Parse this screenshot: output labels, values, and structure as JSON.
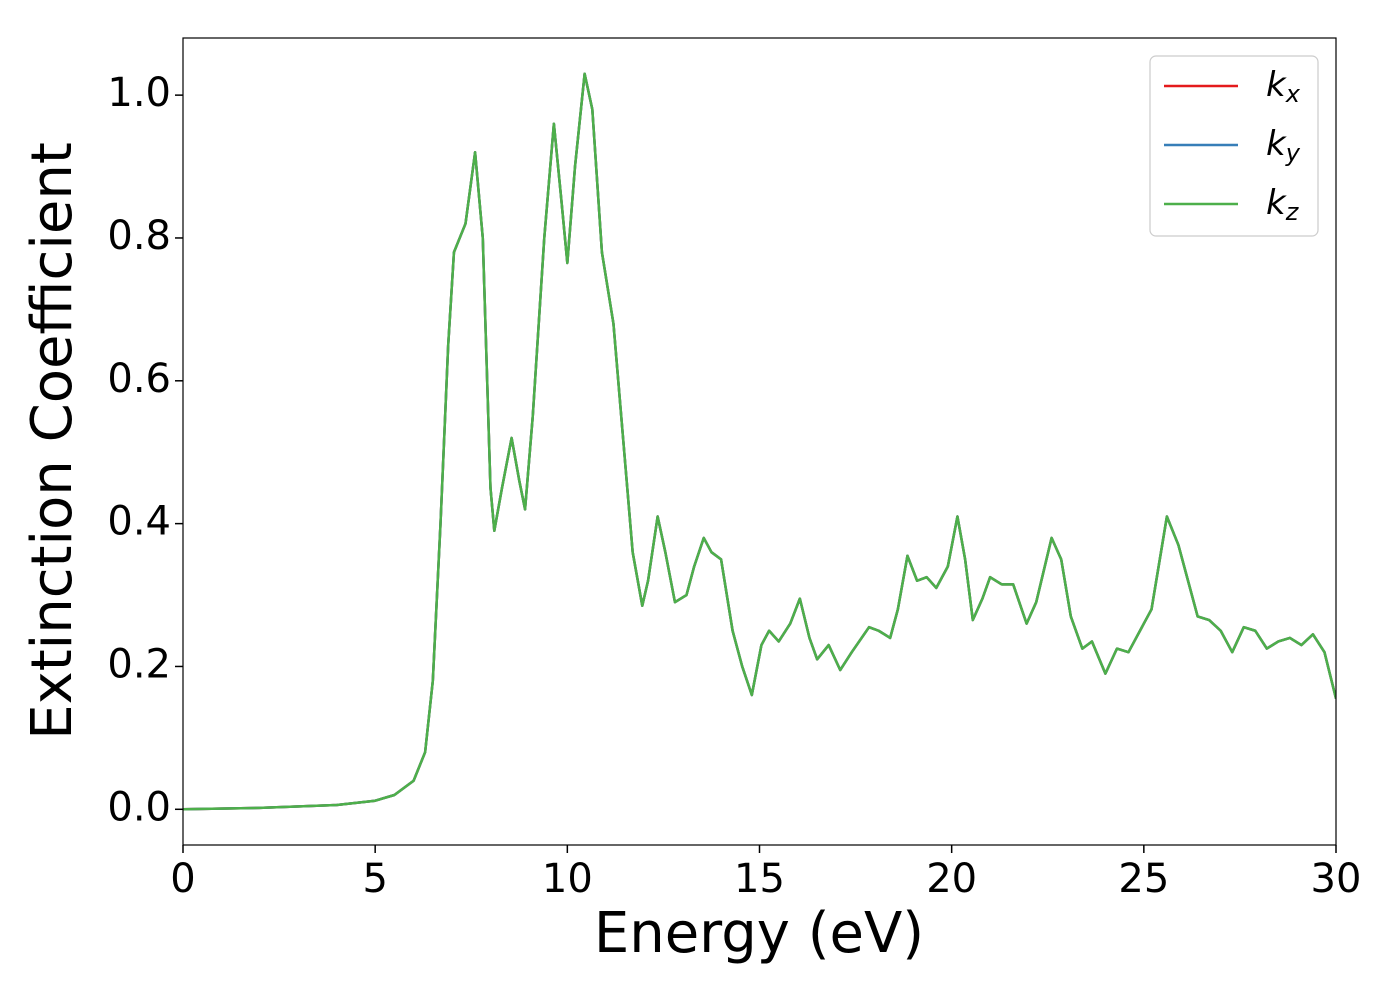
{
  "chart_data": {
    "type": "line",
    "xlabel": "Energy (eV)",
    "ylabel": "Extinction Coefficient",
    "x": [
      0,
      2,
      4,
      5,
      5.5,
      6,
      6.3,
      6.5,
      6.7,
      6.9,
      7.05,
      7.2,
      7.35,
      7.6,
      7.8,
      8.0,
      8.1,
      8.3,
      8.55,
      8.75,
      8.9,
      9.1,
      9.4,
      9.65,
      9.85,
      10.0,
      10.2,
      10.45,
      10.65,
      10.9,
      11.2,
      11.45,
      11.7,
      11.95,
      12.1,
      12.35,
      12.55,
      12.8,
      13.1,
      13.3,
      13.55,
      13.75,
      14.0,
      14.3,
      14.55,
      14.8,
      15.05,
      15.25,
      15.5,
      15.8,
      16.05,
      16.3,
      16.5,
      16.8,
      17.1,
      17.4,
      17.85,
      18.1,
      18.4,
      18.6,
      18.85,
      19.1,
      19.35,
      19.6,
      19.9,
      20.15,
      20.35,
      20.55,
      20.8,
      21.0,
      21.3,
      21.6,
      21.95,
      22.2,
      22.6,
      22.85,
      23.1,
      23.4,
      23.65,
      24.0,
      24.3,
      24.6,
      24.9,
      25.2,
      25.6,
      25.9,
      26.1,
      26.4,
      26.7,
      27.0,
      27.3,
      27.6,
      27.9,
      28.2,
      28.5,
      28.8,
      29.1,
      29.4,
      29.7,
      30.0
    ],
    "series": [
      {
        "name": "kx",
        "color": "#e41a1c",
        "values": [
          0,
          0.002,
          0.006,
          0.012,
          0.02,
          0.04,
          0.08,
          0.18,
          0.4,
          0.65,
          0.78,
          0.8,
          0.82,
          0.92,
          0.8,
          0.45,
          0.39,
          0.45,
          0.52,
          0.46,
          0.42,
          0.55,
          0.8,
          0.96,
          0.85,
          0.765,
          0.9,
          1.03,
          0.98,
          0.78,
          0.68,
          0.52,
          0.36,
          0.285,
          0.32,
          0.41,
          0.36,
          0.29,
          0.3,
          0.34,
          0.38,
          0.36,
          0.35,
          0.25,
          0.2,
          0.16,
          0.23,
          0.25,
          0.235,
          0.26,
          0.295,
          0.24,
          0.21,
          0.23,
          0.195,
          0.22,
          0.255,
          0.25,
          0.24,
          0.28,
          0.355,
          0.32,
          0.325,
          0.31,
          0.34,
          0.41,
          0.35,
          0.265,
          0.295,
          0.325,
          0.315,
          0.315,
          0.26,
          0.29,
          0.38,
          0.35,
          0.27,
          0.225,
          0.235,
          0.19,
          0.225,
          0.22,
          0.25,
          0.28,
          0.41,
          0.37,
          0.33,
          0.27,
          0.265,
          0.25,
          0.22,
          0.255,
          0.25,
          0.225,
          0.235,
          0.24,
          0.23,
          0.245,
          0.22,
          0.155
        ]
      },
      {
        "name": "ky",
        "color": "#377eb8",
        "values": [
          0,
          0.002,
          0.006,
          0.012,
          0.02,
          0.04,
          0.08,
          0.18,
          0.4,
          0.65,
          0.78,
          0.8,
          0.82,
          0.92,
          0.8,
          0.45,
          0.39,
          0.45,
          0.52,
          0.46,
          0.42,
          0.55,
          0.8,
          0.96,
          0.85,
          0.765,
          0.9,
          1.03,
          0.98,
          0.78,
          0.68,
          0.52,
          0.36,
          0.285,
          0.32,
          0.41,
          0.36,
          0.29,
          0.3,
          0.34,
          0.38,
          0.36,
          0.35,
          0.25,
          0.2,
          0.16,
          0.23,
          0.25,
          0.235,
          0.26,
          0.295,
          0.24,
          0.21,
          0.23,
          0.195,
          0.22,
          0.255,
          0.25,
          0.24,
          0.28,
          0.355,
          0.32,
          0.325,
          0.31,
          0.34,
          0.41,
          0.35,
          0.265,
          0.295,
          0.325,
          0.315,
          0.315,
          0.26,
          0.29,
          0.38,
          0.35,
          0.27,
          0.225,
          0.235,
          0.19,
          0.225,
          0.22,
          0.25,
          0.28,
          0.41,
          0.37,
          0.33,
          0.27,
          0.265,
          0.25,
          0.22,
          0.255,
          0.25,
          0.225,
          0.235,
          0.24,
          0.23,
          0.245,
          0.22,
          0.155
        ]
      },
      {
        "name": "kz",
        "color": "#4daf4a",
        "values": [
          0,
          0.002,
          0.006,
          0.012,
          0.02,
          0.04,
          0.08,
          0.18,
          0.4,
          0.65,
          0.78,
          0.8,
          0.82,
          0.92,
          0.8,
          0.45,
          0.39,
          0.45,
          0.52,
          0.46,
          0.42,
          0.55,
          0.8,
          0.96,
          0.85,
          0.765,
          0.9,
          1.03,
          0.98,
          0.78,
          0.68,
          0.52,
          0.36,
          0.285,
          0.32,
          0.41,
          0.36,
          0.29,
          0.3,
          0.34,
          0.38,
          0.36,
          0.35,
          0.25,
          0.2,
          0.16,
          0.23,
          0.25,
          0.235,
          0.26,
          0.295,
          0.24,
          0.21,
          0.23,
          0.195,
          0.22,
          0.255,
          0.25,
          0.24,
          0.28,
          0.355,
          0.32,
          0.325,
          0.31,
          0.34,
          0.41,
          0.35,
          0.265,
          0.295,
          0.325,
          0.315,
          0.315,
          0.26,
          0.29,
          0.38,
          0.35,
          0.27,
          0.225,
          0.235,
          0.19,
          0.225,
          0.22,
          0.25,
          0.28,
          0.41,
          0.37,
          0.33,
          0.27,
          0.265,
          0.25,
          0.22,
          0.255,
          0.25,
          0.225,
          0.235,
          0.24,
          0.23,
          0.245,
          0.22,
          0.155
        ]
      }
    ],
    "xlim": [
      0,
      30
    ],
    "xticks": [
      0,
      5,
      10,
      15,
      20,
      25,
      30
    ],
    "ylim": [
      -0.05,
      1.08
    ],
    "yticks": [
      {
        "value": 0,
        "label": "0.0"
      },
      0.2,
      0.4,
      0.6,
      0.8,
      {
        "value": 1,
        "label": "1.0"
      }
    ],
    "grid": false,
    "legend": "upper right"
  }
}
